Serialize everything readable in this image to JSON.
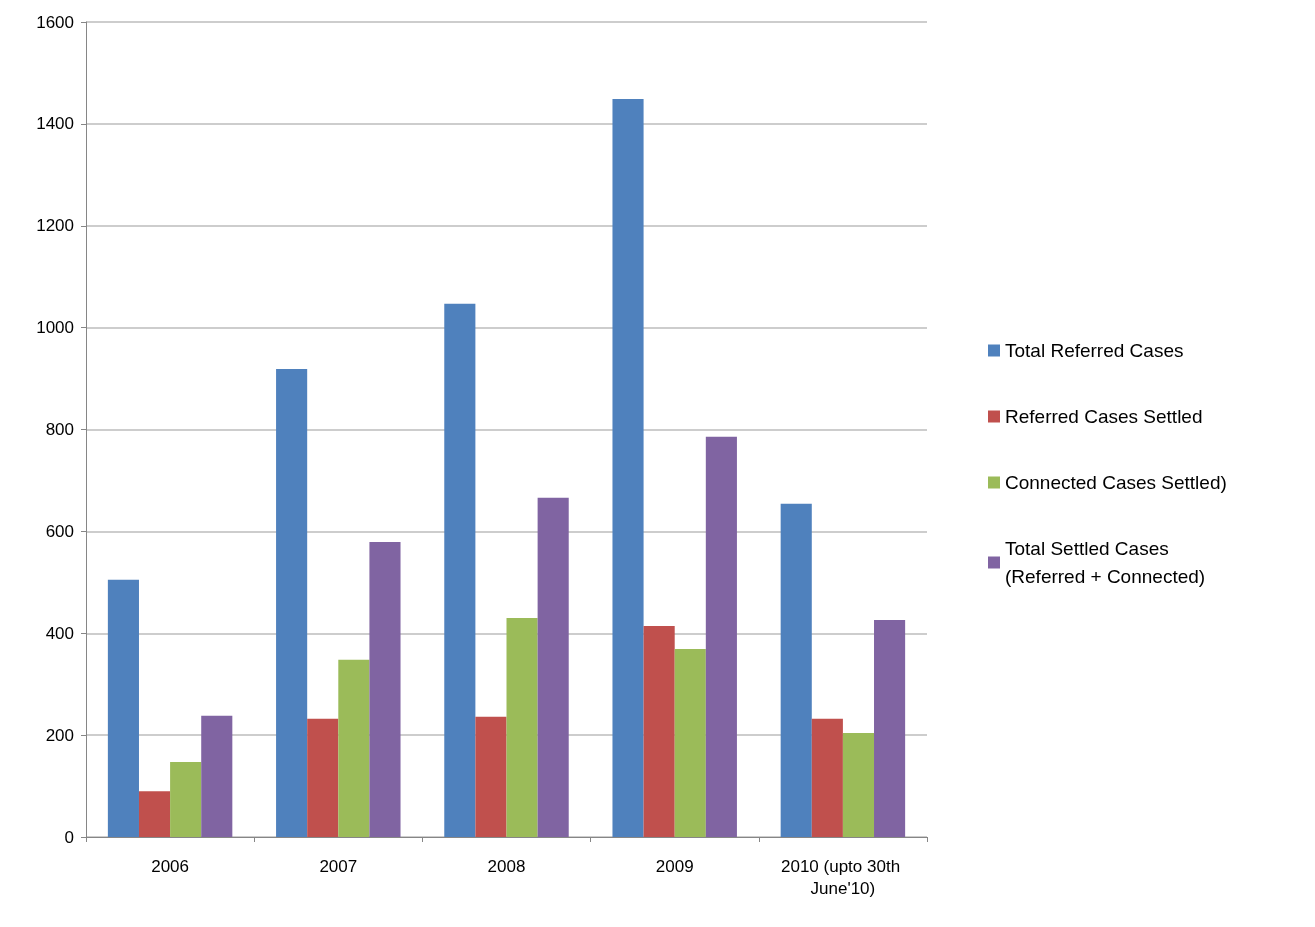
{
  "chart_data": {
    "type": "bar",
    "categories": [
      "2006",
      "2007",
      "2008",
      "2009",
      "2010 (upto 30th June'10)"
    ],
    "series": [
      {
        "name": "Total Referred Cases",
        "color": "#4f81bd",
        "values": [
          505,
          919,
          1047,
          1449,
          654
        ]
      },
      {
        "name": "Referred Cases Settled",
        "color": "#c0504d",
        "values": [
          90,
          232,
          236,
          414,
          232
        ]
      },
      {
        "name": "Connected Cases Settled)",
        "color": "#9bbb59",
        "values": [
          147,
          348,
          430,
          369,
          204
        ]
      },
      {
        "name": "Total Settled Cases (Referred + Connected)",
        "color": "#8064a2",
        "values": [
          238,
          579,
          666,
          786,
          426
        ]
      }
    ],
    "ylim": [
      0,
      1600
    ],
    "yticks": [
      0,
      200,
      400,
      600,
      800,
      1000,
      1200,
      1400,
      1600
    ],
    "grid": "y",
    "legend": "right"
  }
}
